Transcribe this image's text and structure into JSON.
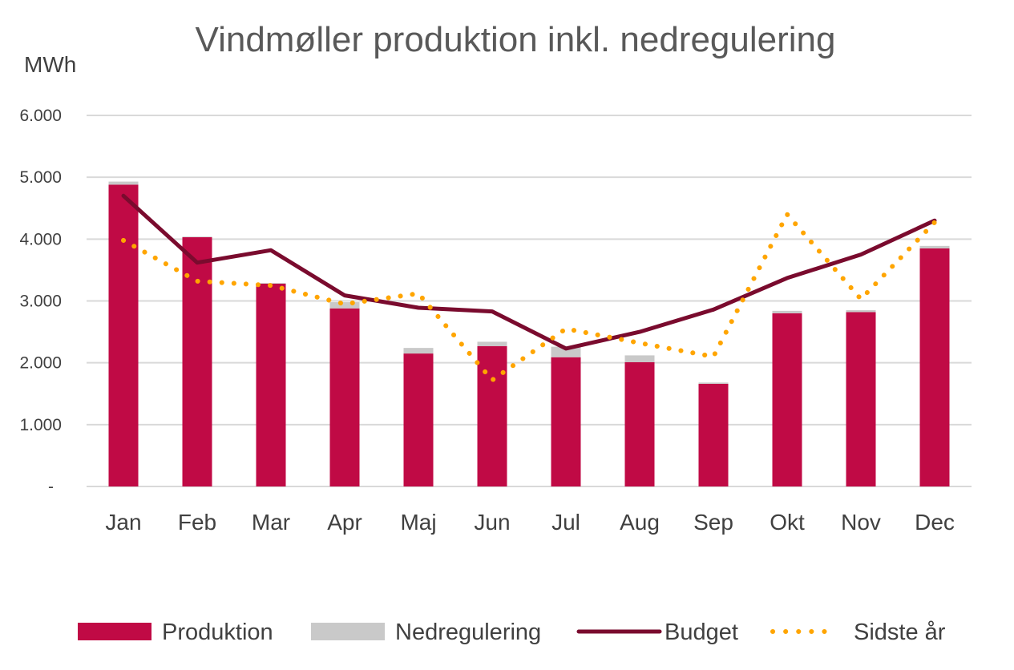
{
  "chart_data": {
    "type": "bar",
    "title": "Vindmøller produktion inkl. nedregulering",
    "ylabel": "MWh",
    "xlabel": "",
    "ylim": [
      0,
      6000
    ],
    "yticks": [
      0,
      1000,
      2000,
      3000,
      4000,
      5000,
      6000
    ],
    "ytick_labels": [
      "-",
      "1.000",
      "2.000",
      "3.000",
      "4.000",
      "5.000",
      "6.000"
    ],
    "categories": [
      "Jan",
      "Feb",
      "Mar",
      "Apr",
      "Maj",
      "Jun",
      "Jul",
      "Aug",
      "Sep",
      "Okt",
      "Nov",
      "Dec"
    ],
    "grid": true,
    "legend_position": "bottom",
    "series": [
      {
        "name": "Produktion",
        "kind": "bar-stacked",
        "color": "#c00a45",
        "values": [
          4880,
          4030,
          3280,
          2880,
          2150,
          2270,
          2090,
          2010,
          1660,
          2800,
          2820,
          3850
        ]
      },
      {
        "name": "Nedregulering",
        "kind": "bar-stacked",
        "color": "#c9c9c9",
        "values": [
          50,
          10,
          10,
          100,
          90,
          70,
          170,
          110,
          20,
          40,
          30,
          40
        ]
      },
      {
        "name": "Budget",
        "kind": "line",
        "color": "#7a0b2e",
        "values": [
          4700,
          3620,
          3820,
          3090,
          2890,
          2830,
          2230,
          2500,
          2860,
          3370,
          3750,
          4300
        ]
      },
      {
        "name": "Sidste år",
        "kind": "dotted-line",
        "color": "#ffa500",
        "values": [
          3980,
          3320,
          3250,
          2950,
          3120,
          1720,
          2550,
          2320,
          2100,
          4400,
          3030,
          4270
        ]
      }
    ]
  }
}
